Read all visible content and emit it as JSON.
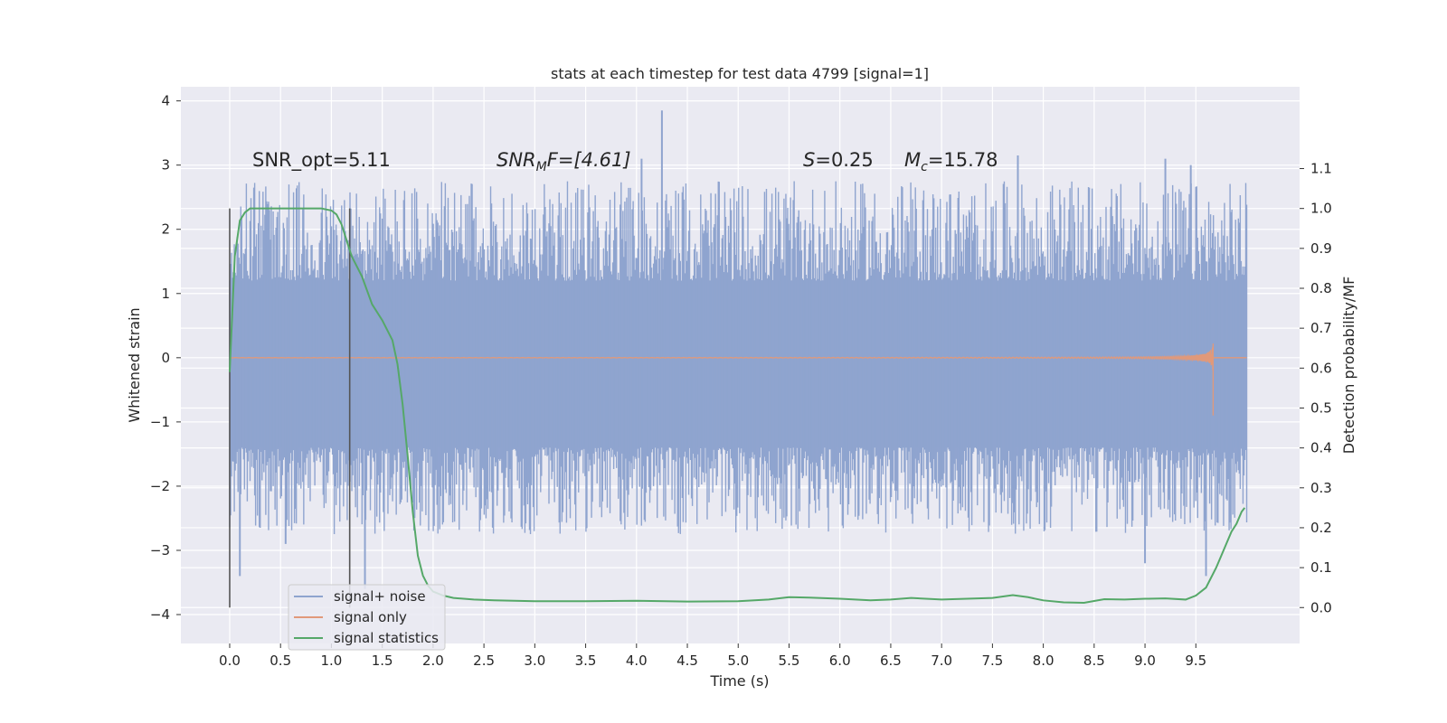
{
  "chart_data": {
    "type": "line",
    "title": "stats at each timestep for test data 4799 [signal=1]",
    "xlabel": "Time (s)",
    "ylabel": "Whitened strain",
    "y2label": "Detection probability/MF",
    "xlim": [
      -0.48,
      10.52
    ],
    "ylim": [
      -4.45,
      4.22
    ],
    "y2lim": [
      -0.09,
      1.305
    ],
    "x_ticks": [
      0.0,
      0.5,
      1.0,
      1.5,
      2.0,
      2.5,
      3.0,
      3.5,
      4.0,
      4.5,
      5.0,
      5.5,
      6.0,
      6.5,
      7.0,
      7.5,
      8.0,
      8.5,
      9.0,
      9.5
    ],
    "x_tick_labels": [
      "0.0",
      "0.5",
      "1.0",
      "1.5",
      "2.0",
      "2.5",
      "3.0",
      "3.5",
      "4.0",
      "4.5",
      "5.0",
      "5.5",
      "6.0",
      "6.5",
      "7.0",
      "7.5",
      "8.0",
      "8.5",
      "9.0",
      "9.5"
    ],
    "y_ticks": [
      4,
      3,
      2,
      1,
      0,
      -1,
      -2,
      -3,
      -4
    ],
    "y_tick_labels": [
      "4",
      "3",
      "2",
      "1",
      "0",
      "−1",
      "−2",
      "−3",
      "−4"
    ],
    "y2_ticks": [
      1.1,
      1.0,
      0.9,
      0.8,
      0.7,
      0.6,
      0.5,
      0.4,
      0.3,
      0.2,
      0.1,
      0.0
    ],
    "y2_tick_labels": [
      "1.1",
      "1.0",
      "0.9",
      "0.8",
      "0.7",
      "0.6",
      "0.5",
      "0.4",
      "0.3",
      "0.2",
      "0.1",
      "0.0"
    ],
    "grid": true,
    "legend_position": "lower-left",
    "annotations": {
      "snr_opt": "SNR_opt=5.11",
      "snr_mf_base": "SNR",
      "snr_mf_sub": "M",
      "snr_mf_tail": "F=[4.61]",
      "s_var": "S",
      "s_value": "=0.25",
      "mc_var": "M",
      "mc_sub": "c",
      "mc_value": "=15.78"
    },
    "window_markers_x": [
      0.0,
      1.18
    ],
    "series": [
      {
        "name": "signal+ noise",
        "color": "#8fa4cf",
        "x_range": [
          0.0,
          10.0
        ],
        "typical_range": [
          -1.4,
          1.2
        ],
        "extreme_peaks": [
          {
            "x": 0.1,
            "y": -3.4
          },
          {
            "x": 1.33,
            "y": -3.6
          },
          {
            "x": 4.25,
            "y": 3.85
          },
          {
            "x": 4.05,
            "y": 3.1
          },
          {
            "x": 7.75,
            "y": 3.15
          },
          {
            "x": 9.2,
            "y": 3.1
          },
          {
            "x": 9.45,
            "y": 3.0
          },
          {
            "x": 9.6,
            "y": -3.4
          },
          {
            "x": 9.0,
            "y": -3.2
          },
          {
            "x": 0.55,
            "y": -2.9
          }
        ]
      },
      {
        "name": "signal only",
        "color": "#e1997a",
        "x_range": [
          0.0,
          10.0
        ],
        "chirp_end_x": 9.67,
        "chirp_peak_amplitude": 0.7
      },
      {
        "name": "signal statistics",
        "color": "#55a868",
        "axis": "right",
        "x": [
          0.0,
          0.05,
          0.1,
          0.15,
          0.2,
          0.3,
          0.5,
          0.7,
          0.9,
          1.0,
          1.05,
          1.1,
          1.15,
          1.2,
          1.3,
          1.4,
          1.5,
          1.6,
          1.65,
          1.7,
          1.75,
          1.8,
          1.85,
          1.9,
          1.95,
          2.0,
          2.1,
          2.2,
          2.4,
          2.6,
          3.0,
          3.5,
          4.0,
          4.5,
          5.0,
          5.3,
          5.5,
          5.7,
          6.0,
          6.3,
          6.5,
          6.7,
          7.0,
          7.5,
          7.7,
          7.85,
          8.0,
          8.2,
          8.4,
          8.6,
          8.8,
          9.0,
          9.2,
          9.4,
          9.5,
          9.6,
          9.65,
          9.7,
          9.75,
          9.8,
          9.85,
          9.9,
          9.95,
          9.98
        ],
        "values": [
          0.59,
          0.88,
          0.97,
          0.99,
          1.0,
          1.0,
          1.0,
          1.0,
          1.0,
          0.995,
          0.985,
          0.96,
          0.92,
          0.88,
          0.83,
          0.76,
          0.72,
          0.67,
          0.61,
          0.51,
          0.38,
          0.24,
          0.13,
          0.08,
          0.055,
          0.04,
          0.03,
          0.024,
          0.02,
          0.018,
          0.016,
          0.016,
          0.017,
          0.015,
          0.016,
          0.02,
          0.026,
          0.025,
          0.022,
          0.018,
          0.02,
          0.024,
          0.02,
          0.024,
          0.031,
          0.026,
          0.018,
          0.013,
          0.012,
          0.021,
          0.02,
          0.022,
          0.023,
          0.02,
          0.03,
          0.05,
          0.075,
          0.1,
          0.13,
          0.16,
          0.19,
          0.21,
          0.24,
          0.25
        ]
      }
    ]
  }
}
